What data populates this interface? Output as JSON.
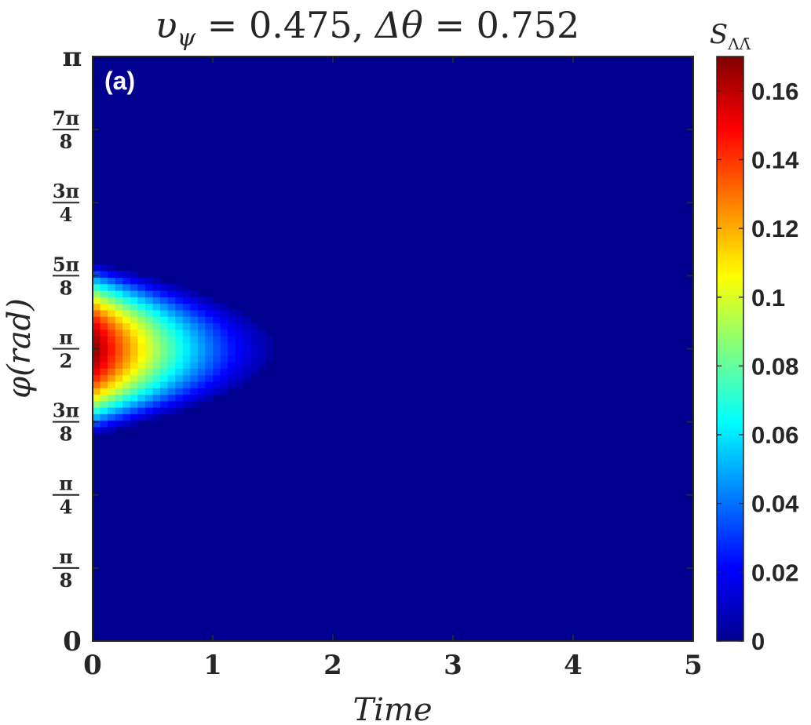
{
  "chart_data": {
    "type": "heatmap",
    "title": "υ_ψ = 0.475, Δθ = 0.752",
    "title_parts": {
      "lhs1": "υ",
      "lhs1_sub": "ψ",
      "rhs1": " = 0.475, ",
      "lhs2": "Δθ",
      "rhs2": " = 0.752"
    },
    "xlabel": "Time",
    "ylabel": "φ(rad)",
    "ylabel_parts": {
      "sym": "φ",
      "unit": "(rad)"
    },
    "panel_label": "(a)",
    "xlim": [
      0,
      5
    ],
    "ylim": [
      0,
      3.14159
    ],
    "x_ticks": [
      {
        "value": 0,
        "label": "0"
      },
      {
        "value": 1,
        "label": "1"
      },
      {
        "value": 2,
        "label": "2"
      },
      {
        "value": 3,
        "label": "3"
      },
      {
        "value": 4,
        "label": "4"
      },
      {
        "value": 5,
        "label": "5"
      }
    ],
    "y_ticks": [
      {
        "value": 0,
        "label": "0"
      },
      {
        "value": 0.3927,
        "num": "π",
        "den": "8"
      },
      {
        "value": 0.7854,
        "num": "π",
        "den": "4"
      },
      {
        "value": 1.1781,
        "num": "3π",
        "den": "8"
      },
      {
        "value": 1.5708,
        "num": "π",
        "den": "2"
      },
      {
        "value": 1.9635,
        "num": "5π",
        "den": "8"
      },
      {
        "value": 2.3562,
        "num": "3π",
        "den": "4"
      },
      {
        "value": 2.7489,
        "num": "7π",
        "den": "8"
      },
      {
        "value": 3.14159,
        "label": "π"
      }
    ],
    "colorbar": {
      "label": "S_ΛΛ̄",
      "label_parts": {
        "main": "S",
        "sub": "ΛΛ̄"
      },
      "range": [
        0,
        0.17
      ],
      "ticks": [
        {
          "value": 0,
          "label": "0"
        },
        {
          "value": 0.02,
          "label": "0.02"
        },
        {
          "value": 0.04,
          "label": "0.04"
        },
        {
          "value": 0.06,
          "label": "0.06"
        },
        {
          "value": 0.08,
          "label": "0.08"
        },
        {
          "value": 0.1,
          "label": "0.1"
        },
        {
          "value": 0.12,
          "label": "0.12"
        },
        {
          "value": 0.14,
          "label": "0.14"
        },
        {
          "value": 0.16,
          "label": "0.16"
        }
      ],
      "colormap": "jet"
    },
    "field": {
      "peak_value": 0.17,
      "peak_phi": 1.5708,
      "phi_halfwidth_at_t0": 0.46,
      "decay_time": 1.65
    }
  }
}
